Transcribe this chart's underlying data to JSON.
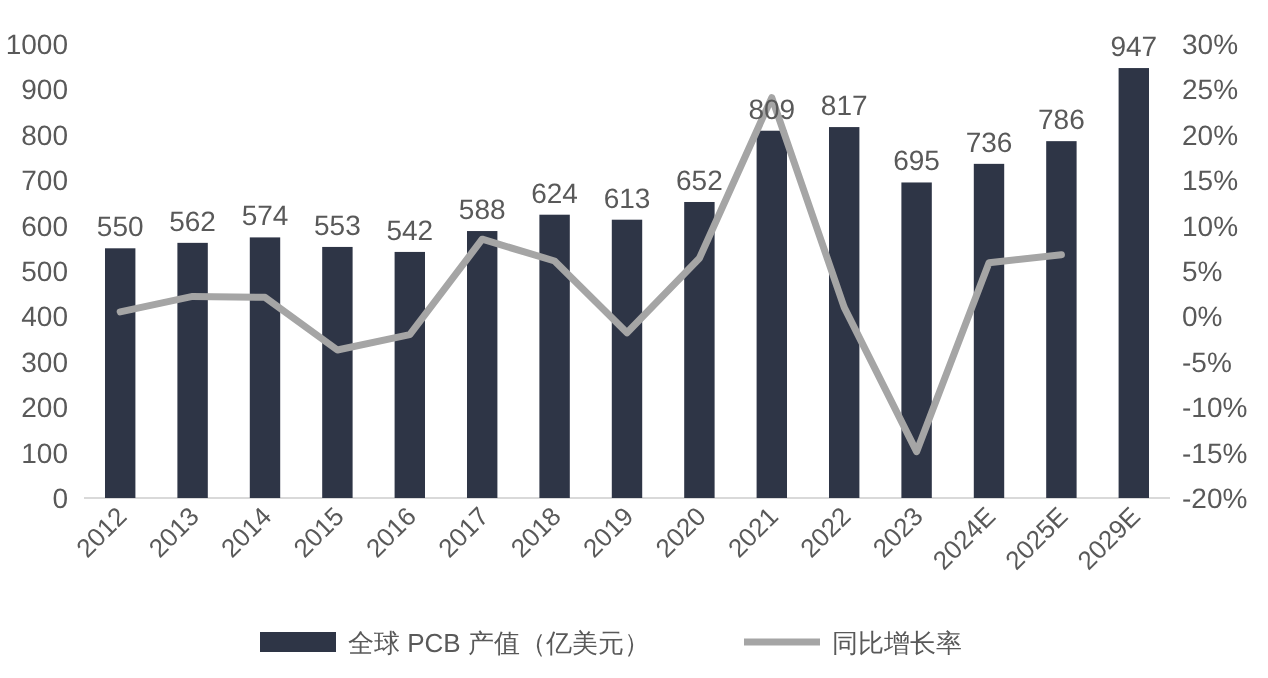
{
  "chart_data": {
    "type": "bar",
    "categories": [
      "2012",
      "2013",
      "2014",
      "2015",
      "2016",
      "2017",
      "2018",
      "2019",
      "2020",
      "2021",
      "2022",
      "2023",
      "2024E",
      "2025E",
      "2029E"
    ],
    "series": [
      {
        "name": "全球 PCB 产值（亿美元）",
        "color": "#2e3546",
        "values": [
          550,
          562,
          574,
          553,
          542,
          588,
          624,
          613,
          652,
          809,
          817,
          695,
          736,
          786,
          947
        ],
        "value_labels": [
          "550",
          "562",
          "574",
          "553",
          "542",
          "588",
          "624",
          "613",
          "652",
          "809",
          "817",
          "695",
          "736",
          "786",
          "947"
        ]
      },
      {
        "name": "同比增长率",
        "type": "line",
        "axis": "y2",
        "color": "#a5a5a5",
        "values": [
          0.5,
          2.2,
          2.1,
          -3.7,
          -2.0,
          8.5,
          6.1,
          -1.8,
          6.4,
          24.1,
          1.0,
          -14.9,
          5.9,
          6.8,
          null
        ]
      }
    ],
    "ylim": [
      0,
      1000
    ],
    "yticks": [
      0,
      100,
      200,
      300,
      400,
      500,
      600,
      700,
      800,
      900,
      1000
    ],
    "y2lim": [
      -20,
      30
    ],
    "y2ticks": [
      {
        "value": -20,
        "label": "-20%"
      },
      {
        "value": -15,
        "label": "-15%"
      },
      {
        "value": -10,
        "label": "-10%"
      },
      {
        "value": -5,
        "label": "-5%"
      },
      {
        "value": 0,
        "label": "0%"
      },
      {
        "value": 5,
        "label": "5%"
      },
      {
        "value": 10,
        "label": "10%"
      },
      {
        "value": 15,
        "label": "15%"
      },
      {
        "value": 20,
        "label": "20%"
      },
      {
        "value": 25,
        "label": "25%"
      },
      {
        "value": 30,
        "label": "30%"
      }
    ],
    "legend": "bottom"
  }
}
